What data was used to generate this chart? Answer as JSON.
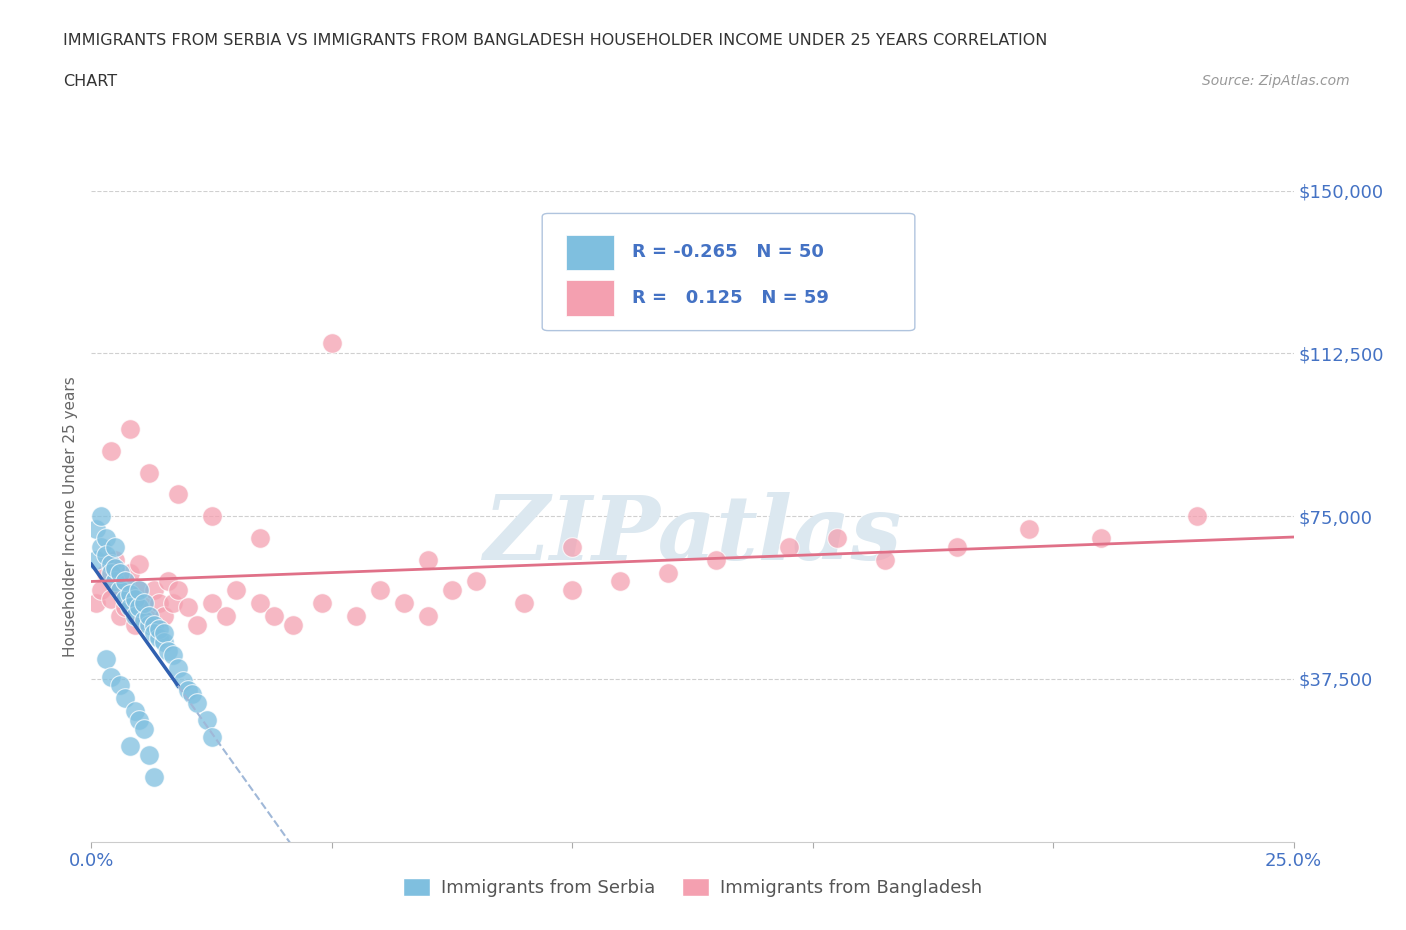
{
  "title_line1": "IMMIGRANTS FROM SERBIA VS IMMIGRANTS FROM BANGLADESH HOUSEHOLDER INCOME UNDER 25 YEARS CORRELATION",
  "title_line2": "CHART",
  "source_text": "Source: ZipAtlas.com",
  "ylabel": "Householder Income Under 25 years",
  "xlim": [
    0.0,
    0.25
  ],
  "ylim": [
    0,
    150000
  ],
  "xticks": [
    0.0,
    0.05,
    0.1,
    0.15,
    0.2,
    0.25
  ],
  "xticklabels": [
    "0.0%",
    "",
    "",
    "",
    "",
    "25.0%"
  ],
  "ytick_positions": [
    0,
    37500,
    75000,
    112500,
    150000
  ],
  "ytick_labels": [
    "",
    "$37,500",
    "$75,000",
    "$112,500",
    "$150,000"
  ],
  "serbia_color": "#7fbfdf",
  "bangladesh_color": "#f4a0b0",
  "legend_R_color": "#4472c4",
  "watermark_text": "ZIPatlas",
  "watermark_color": "#dce8f0",
  "background_color": "#ffffff",
  "serbia_x": [
    0.001,
    0.001,
    0.002,
    0.002,
    0.003,
    0.003,
    0.004,
    0.004,
    0.005,
    0.005,
    0.005,
    0.006,
    0.006,
    0.007,
    0.007,
    0.008,
    0.008,
    0.009,
    0.009,
    0.01,
    0.01,
    0.011,
    0.011,
    0.012,
    0.012,
    0.013,
    0.013,
    0.014,
    0.014,
    0.015,
    0.015,
    0.016,
    0.017,
    0.018,
    0.019,
    0.02,
    0.021,
    0.022,
    0.024,
    0.025,
    0.003,
    0.004,
    0.006,
    0.007,
    0.009,
    0.01,
    0.011,
    0.008,
    0.012,
    0.013
  ],
  "serbia_y": [
    65000,
    72000,
    68000,
    75000,
    70000,
    66000,
    64000,
    62000,
    60000,
    63000,
    68000,
    58000,
    62000,
    56000,
    60000,
    57000,
    54000,
    56000,
    52000,
    54000,
    58000,
    51000,
    55000,
    50000,
    52000,
    50000,
    48000,
    47000,
    49000,
    46000,
    48000,
    44000,
    43000,
    40000,
    37000,
    35000,
    34000,
    32000,
    28000,
    24000,
    42000,
    38000,
    36000,
    33000,
    30000,
    28000,
    26000,
    22000,
    20000,
    15000
  ],
  "bangladesh_x": [
    0.001,
    0.002,
    0.003,
    0.004,
    0.005,
    0.005,
    0.006,
    0.006,
    0.007,
    0.007,
    0.008,
    0.008,
    0.009,
    0.01,
    0.01,
    0.011,
    0.012,
    0.013,
    0.014,
    0.015,
    0.016,
    0.017,
    0.018,
    0.02,
    0.022,
    0.025,
    0.028,
    0.03,
    0.035,
    0.038,
    0.042,
    0.048,
    0.055,
    0.06,
    0.065,
    0.07,
    0.075,
    0.08,
    0.09,
    0.1,
    0.11,
    0.12,
    0.13,
    0.145,
    0.155,
    0.165,
    0.18,
    0.195,
    0.21,
    0.23,
    0.004,
    0.008,
    0.012,
    0.018,
    0.025,
    0.035,
    0.05,
    0.07,
    0.1
  ],
  "bangladesh_y": [
    55000,
    58000,
    62000,
    56000,
    60000,
    65000,
    52000,
    58000,
    54000,
    60000,
    56000,
    62000,
    50000,
    58000,
    64000,
    55000,
    52000,
    58000,
    55000,
    52000,
    60000,
    55000,
    58000,
    54000,
    50000,
    55000,
    52000,
    58000,
    55000,
    52000,
    50000,
    55000,
    52000,
    58000,
    55000,
    52000,
    58000,
    60000,
    55000,
    58000,
    60000,
    62000,
    65000,
    68000,
    70000,
    65000,
    68000,
    72000,
    70000,
    75000,
    90000,
    95000,
    85000,
    80000,
    75000,
    70000,
    115000,
    65000,
    68000
  ],
  "serbia_trendline_x": [
    0.0,
    0.025
  ],
  "serbia_trendline_solid_end": 0.018,
  "bangladesh_trendline_x": [
    0.0,
    0.25
  ],
  "grid_color": "#d0d0d0",
  "spine_color": "#cccccc",
  "tick_label_color": "#4472c4"
}
